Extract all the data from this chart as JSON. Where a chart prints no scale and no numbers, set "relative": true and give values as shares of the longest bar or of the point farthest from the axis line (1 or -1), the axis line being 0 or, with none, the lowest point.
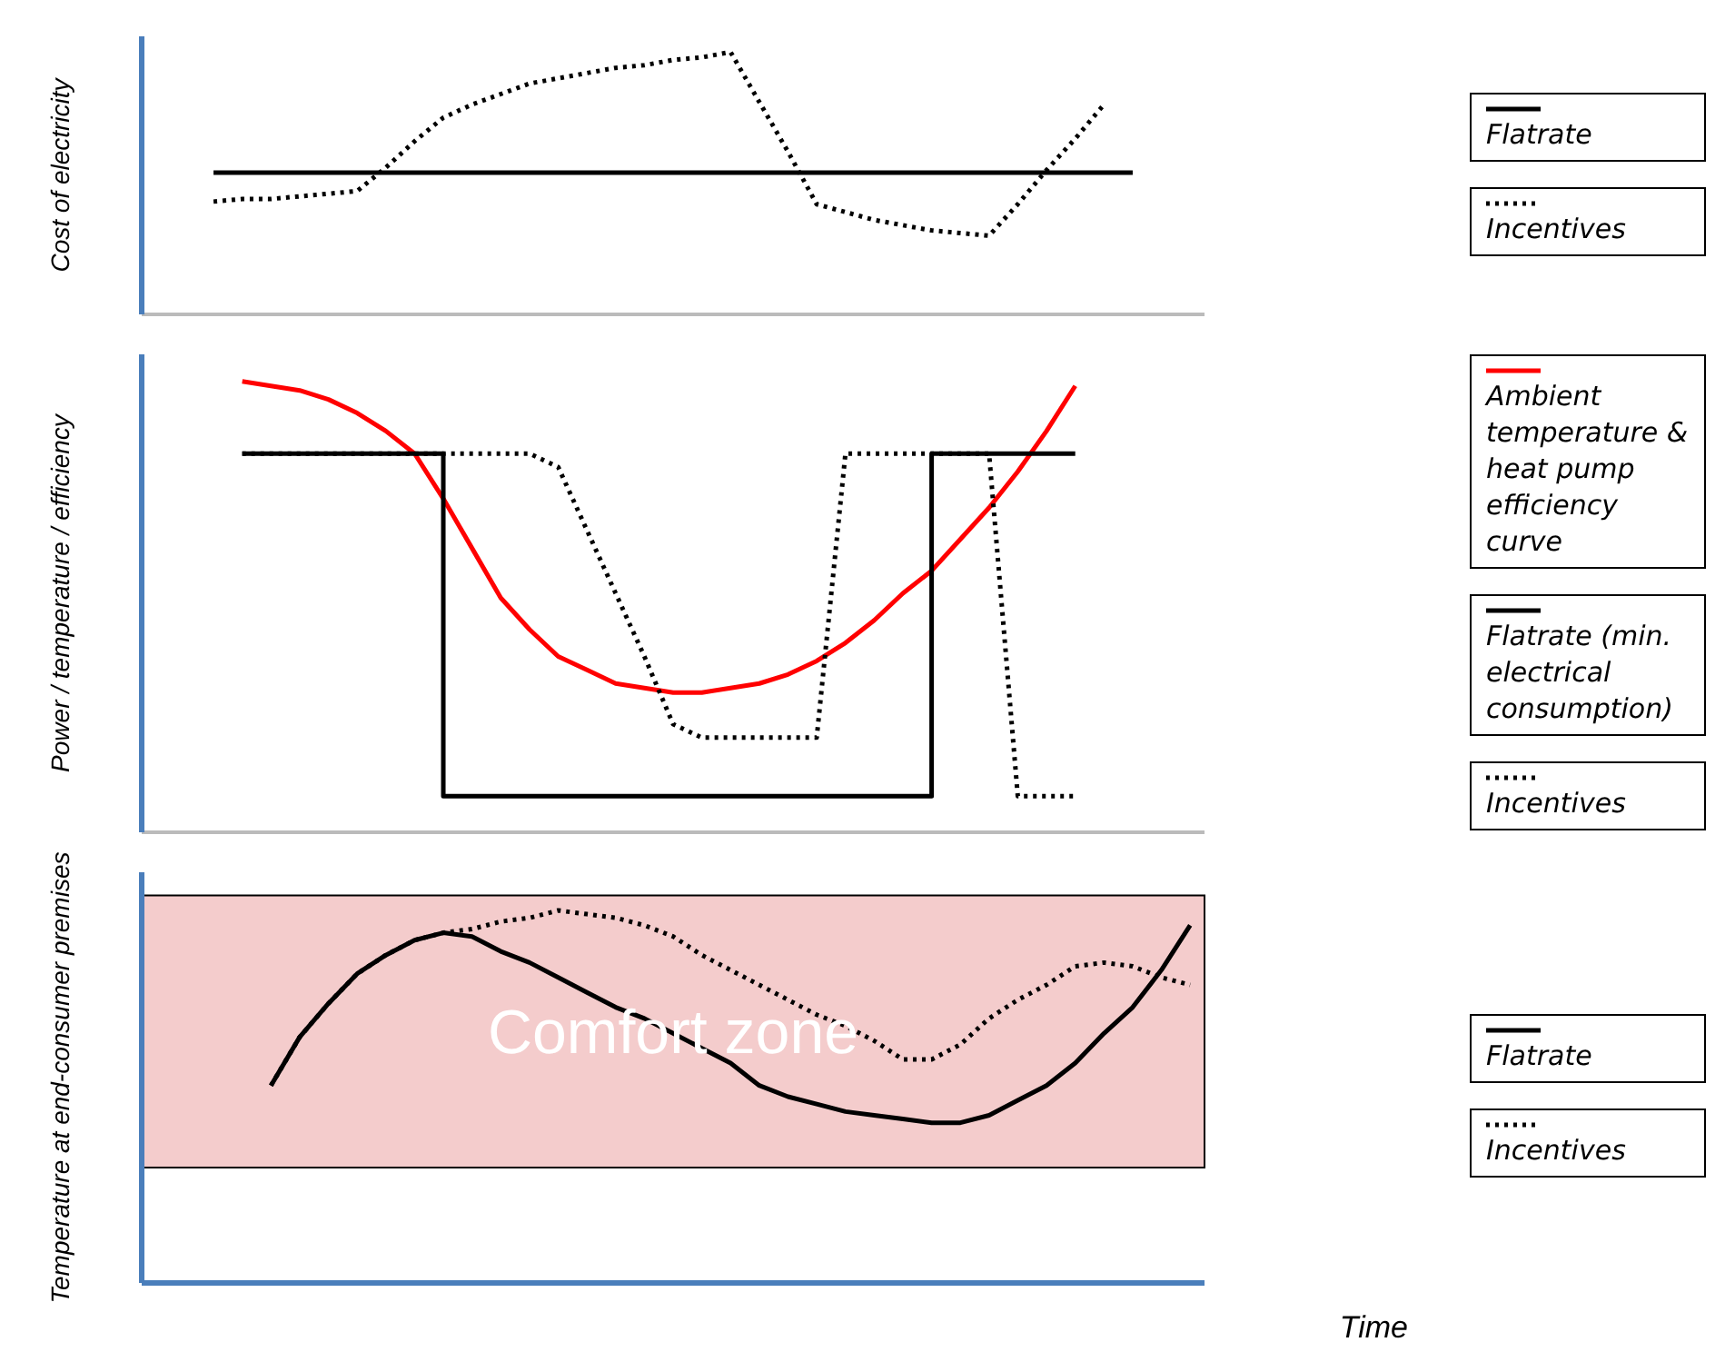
{
  "chart_data": [
    {
      "type": "line",
      "relative": true,
      "ylabel": "Cost of electricity",
      "legend": "right",
      "marker": "none",
      "categories": [
        null,
        null,
        null,
        null,
        null,
        null,
        null,
        null,
        null,
        null,
        null,
        null,
        null,
        null,
        null,
        null,
        null,
        null,
        null,
        null,
        null,
        null,
        null,
        null,
        null,
        null,
        null,
        null,
        null,
        null,
        null,
        null,
        null,
        null,
        null
      ],
      "series": [
        {
          "name": "Flatrate",
          "color": "#000000",
          "line_style": "solid",
          "values": [
            0.54,
            0.54,
            0.54,
            0.54,
            0.54,
            0.54,
            0.54,
            0.54,
            0.54,
            0.54,
            0.54,
            0.54,
            0.54,
            0.54,
            0.54,
            0.54,
            0.54,
            0.54,
            0.54,
            0.54,
            0.54,
            0.54,
            0.54,
            0.54,
            0.54,
            0.54,
            0.54,
            0.54,
            0.54,
            0.54,
            0.54,
            0.54,
            0.54,
            null,
            null
          ]
        },
        {
          "name": "Incentives",
          "color": "#000000",
          "line_style": "dotted",
          "values": [
            0.43,
            0.44,
            0.44,
            0.45,
            0.46,
            0.47,
            0.56,
            0.66,
            0.75,
            0.8,
            0.84,
            0.88,
            0.9,
            0.92,
            0.94,
            0.95,
            0.97,
            0.98,
            1,
            0.81,
            0.62,
            0.42,
            0.39,
            0.36,
            0.34,
            0.32,
            0.31,
            0.3,
            0.42,
            0.55,
            0.67,
            0.8,
            null,
            null,
            null
          ]
        }
      ]
    },
    {
      "type": "line",
      "relative": true,
      "ylabel": "Power / temperature / efficiency",
      "legend": "right",
      "marker": "none",
      "categories": [
        null,
        null,
        null,
        null,
        null,
        null,
        null,
        null,
        null,
        null,
        null,
        null,
        null,
        null,
        null,
        null,
        null,
        null,
        null,
        null,
        null,
        null,
        null,
        null,
        null,
        null,
        null,
        null,
        null,
        null,
        null,
        null,
        null,
        null,
        null
      ],
      "series": [
        {
          "name": "Ambient temperature & heat pump efficiency curve",
          "color": "#ff0000",
          "line_style": "solid",
          "values": [
            null,
            1,
            0.99,
            0.98,
            0.96,
            0.93,
            0.89,
            0.84,
            0.74,
            0.63,
            0.52,
            0.45,
            0.39,
            0.36,
            0.33,
            0.32,
            0.31,
            0.31,
            0.32,
            0.33,
            0.35,
            0.38,
            0.42,
            0.47,
            0.53,
            0.58,
            0.65,
            0.72,
            0.8,
            0.89,
            0.99,
            null,
            null,
            null,
            null
          ]
        },
        {
          "name": "Flatrate (min. electrical consumption)",
          "type": "step",
          "color": "#000000",
          "line_style": "solid",
          "values": [
            null,
            0.84,
            0.84,
            0.84,
            0.84,
            0.84,
            0.84,
            0.84,
            0.08,
            0.08,
            0.08,
            0.08,
            0.08,
            0.08,
            0.08,
            0.08,
            0.08,
            0.08,
            0.08,
            0.08,
            0.08,
            0.08,
            0.08,
            0.08,
            0.08,
            0.84,
            0.84,
            0.84,
            0.84,
            0.84,
            0.84,
            null,
            null,
            null,
            null
          ]
        },
        {
          "name": "Incentives",
          "color": "#000000",
          "line_style": "dotted",
          "values": [
            null,
            0.84,
            0.84,
            0.84,
            0.84,
            0.84,
            0.84,
            0.84,
            0.84,
            0.84,
            0.84,
            0.84,
            0.81,
            0.67,
            0.53,
            0.39,
            0.24,
            0.21,
            0.21,
            0.21,
            0.21,
            0.21,
            0.84,
            0.84,
            0.84,
            0.84,
            0.84,
            0.84,
            0.08,
            0.08,
            0.08,
            null,
            null,
            null,
            null
          ]
        }
      ]
    },
    {
      "type": "line",
      "relative": true,
      "ylabel": "Temperature at end-consumer premises",
      "xlabel": "Time",
      "legend": "right",
      "marker": "none",
      "categories": [
        null,
        null,
        null,
        null,
        null,
        null,
        null,
        null,
        null,
        null,
        null,
        null,
        null,
        null,
        null,
        null,
        null,
        null,
        null,
        null,
        null,
        null,
        null,
        null,
        null,
        null,
        null,
        null,
        null,
        null,
        null,
        null,
        null,
        null,
        null
      ],
      "bands": [
        {
          "axis": "y",
          "from": 0.31,
          "to": 1.04,
          "label": "Comfort zone",
          "color": "#f4cccc"
        }
      ],
      "series": [
        {
          "name": "Flatrate",
          "color": "#000000",
          "line_style": "solid",
          "values": [
            null,
            null,
            0.53,
            0.66,
            0.75,
            0.83,
            0.88,
            0.92,
            0.94,
            0.93,
            0.89,
            0.86,
            0.82,
            0.78,
            0.74,
            0.71,
            0.67,
            0.63,
            0.59,
            0.53,
            0.5,
            0.48,
            0.46,
            0.45,
            0.44,
            0.43,
            0.43,
            0.45,
            0.49,
            0.53,
            0.59,
            0.67,
            0.74,
            0.84,
            0.96
          ]
        },
        {
          "name": "Incentives",
          "color": "#000000",
          "line_style": "dotted",
          "values": [
            null,
            null,
            0.53,
            0.66,
            0.75,
            0.83,
            0.88,
            0.92,
            0.94,
            0.95,
            0.97,
            0.98,
            1,
            0.99,
            0.98,
            0.96,
            0.93,
            0.88,
            0.84,
            0.8,
            0.76,
            0.72,
            0.69,
            0.65,
            0.6,
            0.6,
            0.64,
            0.71,
            0.76,
            0.8,
            0.85,
            0.86,
            0.85,
            0.82,
            0.8
          ]
        }
      ]
    }
  ]
}
